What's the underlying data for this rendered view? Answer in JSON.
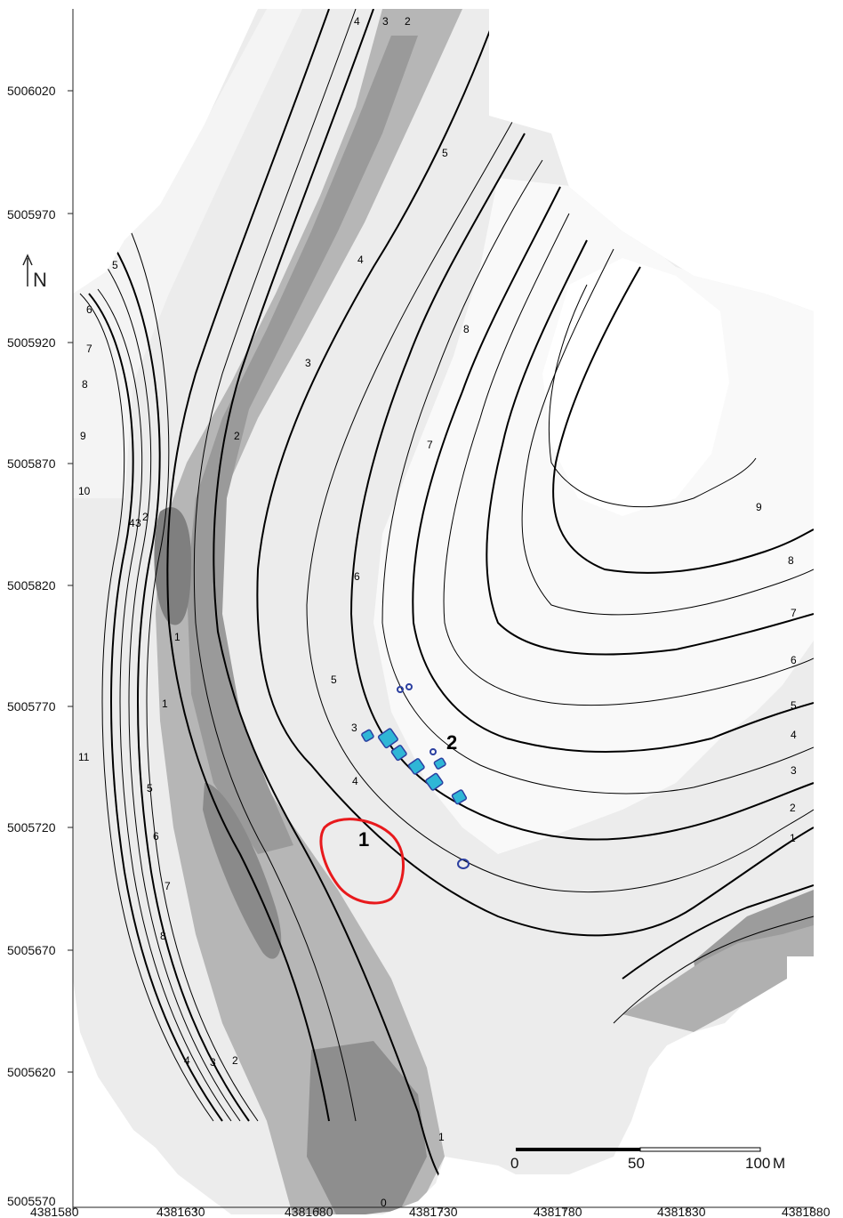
{
  "map": {
    "y_ticks": [
      "5006020",
      "5005970",
      "5005920",
      "5005870",
      "5005820",
      "5005770",
      "5005720",
      "5005670",
      "5005620",
      "5005570"
    ],
    "x_ticks": [
      "4381580",
      "4381630",
      "4381680",
      "4381730",
      "4381780",
      "4381830",
      "4381880"
    ],
    "north_arrow": {
      "icon": "north-arrow-icon",
      "label": "N"
    },
    "scale_bar": {
      "ticks": [
        "0",
        "50",
        "100"
      ],
      "unit": "M"
    },
    "sites": [
      {
        "label": "1",
        "marker": "red-outline",
        "color": "#e8191c"
      },
      {
        "label": "2",
        "marker": "blue-features",
        "color": "#2fb6d6"
      }
    ],
    "contour_labels": [
      "4",
      "3",
      "2",
      "5",
      "4",
      "3",
      "8",
      "7",
      "6",
      "5",
      "6",
      "7",
      "8",
      "9",
      "10",
      "4",
      "3",
      "2",
      "1",
      "1",
      "11",
      "5",
      "6",
      "7",
      "8",
      "4",
      "3",
      "2",
      "2",
      "3",
      "1",
      "0",
      "9",
      "8",
      "7",
      "6",
      "5",
      "4",
      "3",
      "2",
      "1",
      "5",
      "4"
    ],
    "colors": {
      "lines": "#000000",
      "site_1": "#e8191c",
      "site_2": "#2fb6d6",
      "site_2_outline": "#2b3fa0"
    }
  }
}
